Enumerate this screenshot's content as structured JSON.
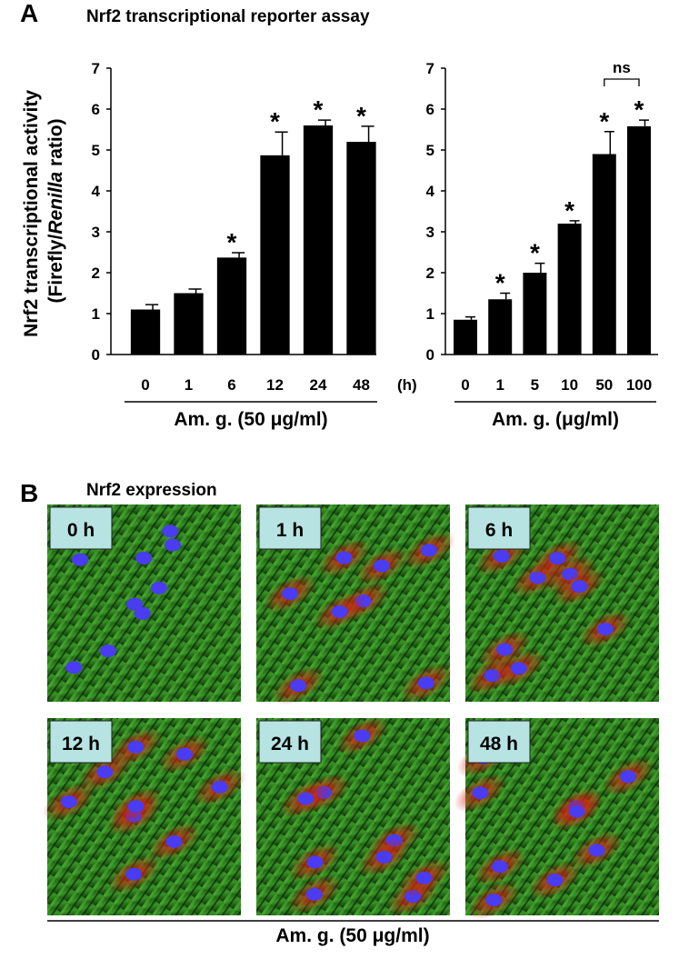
{
  "panel_a": {
    "label": "A",
    "title": "Nrf2 transcriptional reporter assay"
  },
  "chart_data": [
    {
      "type": "bar",
      "ylabel": [
        "Nrf2 transcriptional activity",
        "(Firefly/",
        "Renilla",
        " ratio)"
      ],
      "categories": [
        "0",
        "1",
        "6",
        "12",
        "24",
        "48"
      ],
      "x_unit": "(h)",
      "xlabel": "Am. g. (50 μg/ml)",
      "values": [
        1.1,
        1.5,
        2.37,
        4.87,
        5.6,
        5.2
      ],
      "errors": [
        0.12,
        0.1,
        0.12,
        0.57,
        0.13,
        0.38
      ],
      "significance": [
        null,
        null,
        "*",
        "*",
        "*",
        "*"
      ],
      "color": "#000000",
      "ylim": [
        0,
        7
      ],
      "yticks": [
        0,
        1,
        2,
        3,
        4,
        5,
        6,
        7
      ]
    },
    {
      "type": "bar",
      "categories": [
        "0",
        "1",
        "5",
        "10",
        "50",
        "100"
      ],
      "xlabel": "Am. g. (μg/ml)",
      "values": [
        0.85,
        1.35,
        2.0,
        3.2,
        4.9,
        5.58
      ],
      "errors": [
        0.07,
        0.15,
        0.23,
        0.07,
        0.55,
        0.15
      ],
      "significance": [
        null,
        "*",
        "*",
        "*",
        "*",
        "*"
      ],
      "color": "#000000",
      "bracket": {
        "text": "ns",
        "between": [
          4,
          5
        ]
      },
      "ylim": [
        0,
        7
      ],
      "yticks": [
        0,
        1,
        2,
        3,
        4,
        5,
        6,
        7
      ]
    }
  ],
  "panel_b": {
    "label": "B",
    "title": "Nrf2 expression",
    "images": [
      "0 h",
      "1 h",
      "6 h",
      "12 h",
      "24 h",
      "48 h"
    ],
    "xlabel": "Am. g. (50 μg/ml)"
  }
}
